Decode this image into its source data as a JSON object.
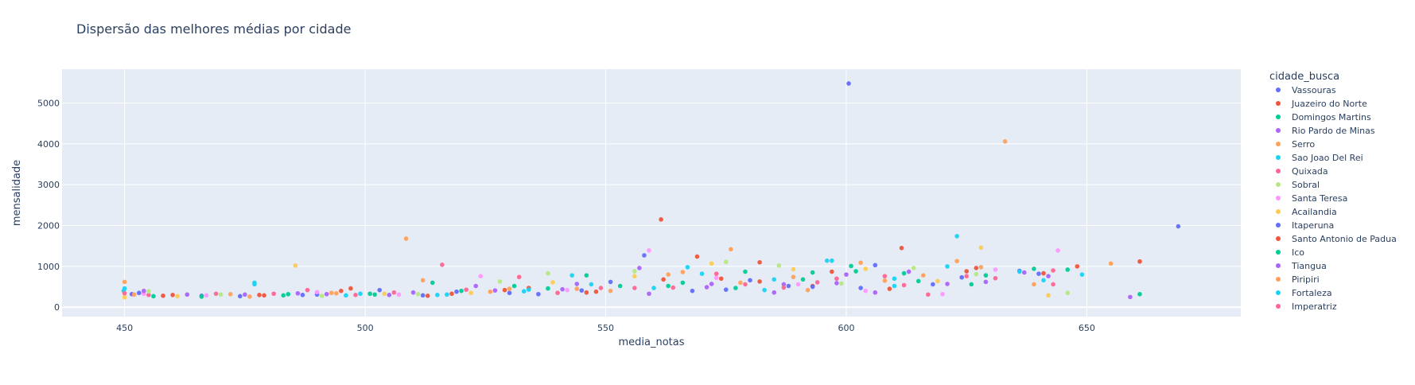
{
  "chart_data": {
    "type": "scatter",
    "title": "Dispersão das melhores médias por cidade",
    "xlabel": "media_notas",
    "ylabel": "mensalidade",
    "xlim": [
      437,
      682
    ],
    "ylim": [
      -230,
      5830
    ],
    "xticks": [
      450,
      500,
      550,
      600,
      650
    ],
    "yticks": [
      0,
      1000,
      2000,
      3000,
      4000,
      5000
    ],
    "grid": true,
    "legend": {
      "title": "cidade_busca",
      "placement": "right"
    },
    "series": [
      {
        "name": "Vassouras",
        "color": "#636efa",
        "points": [
          [
            451.5,
            320
          ],
          [
            474,
            270
          ],
          [
            490,
            310
          ],
          [
            512,
            290
          ],
          [
            530,
            350
          ],
          [
            545,
            410
          ],
          [
            558,
            1270
          ],
          [
            575,
            430
          ],
          [
            588,
            520
          ],
          [
            600.5,
            5480
          ],
          [
            603,
            470
          ],
          [
            618,
            560
          ],
          [
            640,
            820
          ],
          [
            669,
            1980
          ]
        ]
      },
      {
        "name": "Juazeiro do Norte",
        "color": "#ef553b",
        "points": [
          [
            458,
            280
          ],
          [
            478,
            300
          ],
          [
            497,
            460
          ],
          [
            518,
            330
          ],
          [
            534,
            470
          ],
          [
            548,
            380
          ],
          [
            561.5,
            2150
          ],
          [
            569,
            1240
          ],
          [
            582,
            630
          ],
          [
            593,
            520
          ],
          [
            611.5,
            1450
          ],
          [
            625,
            880
          ],
          [
            648,
            1000
          ],
          [
            661,
            1120
          ]
        ]
      },
      {
        "name": "Domingos Martins",
        "color": "#00cc96",
        "points": [
          [
            456,
            270
          ],
          [
            483,
            290
          ],
          [
            502,
            310
          ],
          [
            520,
            400
          ],
          [
            538,
            460
          ],
          [
            553,
            520
          ],
          [
            566,
            600
          ],
          [
            579,
            870
          ],
          [
            591,
            680
          ],
          [
            602,
            880
          ],
          [
            615,
            640
          ],
          [
            629,
            780
          ],
          [
            646,
            920
          ],
          [
            661,
            320
          ]
        ]
      },
      {
        "name": "Rio Pardo de Minas",
        "color": "#ab63fa",
        "points": [
          [
            463,
            310
          ],
          [
            486,
            340
          ],
          [
            505,
            300
          ],
          [
            523,
            520
          ],
          [
            541,
            440
          ],
          [
            559,
            330
          ],
          [
            572,
            570
          ],
          [
            585,
            360
          ],
          [
            598,
            590
          ],
          [
            606,
            360
          ],
          [
            621,
            570
          ],
          [
            637,
            850
          ],
          [
            659,
            250
          ]
        ]
      },
      {
        "name": "Serro",
        "color": "#ffa15a",
        "points": [
          [
            450,
            620
          ],
          [
            472,
            320
          ],
          [
            493,
            350
          ],
          [
            508.5,
            1680
          ],
          [
            526,
            380
          ],
          [
            544,
            450
          ],
          [
            563,
            800
          ],
          [
            576,
            1420
          ],
          [
            589,
            740
          ],
          [
            608,
            650
          ],
          [
            623,
            1130
          ],
          [
            633,
            4060
          ],
          [
            655,
            1070
          ]
        ]
      },
      {
        "name": "Sao Joao Del Rei",
        "color": "#19d3f3",
        "points": [
          [
            450,
            460
          ],
          [
            477,
            600
          ],
          [
            499,
            330
          ],
          [
            515,
            300
          ],
          [
            533,
            390
          ],
          [
            547,
            560
          ],
          [
            567,
            980
          ],
          [
            583,
            420
          ],
          [
            596,
            1140
          ],
          [
            610,
            520
          ],
          [
            623,
            1740
          ],
          [
            641,
            660
          ],
          [
            649,
            800
          ]
        ]
      },
      {
        "name": "Quixada",
        "color": "#ff6692",
        "points": [
          [
            455,
            300
          ],
          [
            481,
            330
          ],
          [
            498,
            300
          ],
          [
            516,
            1040
          ],
          [
            532,
            740
          ],
          [
            549,
            470
          ],
          [
            564,
            480
          ],
          [
            579,
            560
          ],
          [
            594,
            610
          ],
          [
            608,
            760
          ],
          [
            617,
            310
          ],
          [
            631,
            710
          ],
          [
            643,
            900
          ]
        ]
      },
      {
        "name": "Sobral",
        "color": "#b6e880",
        "points": [
          [
            455,
            390
          ],
          [
            470,
            310
          ],
          [
            491,
            280
          ],
          [
            511,
            320
          ],
          [
            528,
            630
          ],
          [
            538,
            830
          ],
          [
            556,
            880
          ],
          [
            575,
            1110
          ],
          [
            586,
            1020
          ],
          [
            599,
            580
          ],
          [
            614,
            960
          ],
          [
            627,
            810
          ],
          [
            646,
            350
          ]
        ]
      },
      {
        "name": "Santa Teresa",
        "color": "#ff97ff",
        "points": [
          [
            454,
            330
          ],
          [
            467,
            290
          ],
          [
            490,
            370
          ],
          [
            507,
            310
          ],
          [
            524,
            760
          ],
          [
            542,
            420
          ],
          [
            559,
            1390
          ],
          [
            573,
            720
          ],
          [
            590,
            560
          ],
          [
            604,
            400
          ],
          [
            620,
            320
          ],
          [
            631,
            920
          ],
          [
            644,
            1390
          ]
        ]
      },
      {
        "name": "Acailandia",
        "color": "#fecb52",
        "points": [
          [
            450,
            240
          ],
          [
            461,
            270
          ],
          [
            485.5,
            1020
          ],
          [
            504,
            330
          ],
          [
            522,
            350
          ],
          [
            539,
            610
          ],
          [
            556,
            760
          ],
          [
            572,
            1070
          ],
          [
            589,
            930
          ],
          [
            604,
            940
          ],
          [
            619,
            640
          ],
          [
            628,
            1460
          ],
          [
            642,
            290
          ]
        ]
      },
      {
        "name": "Itaperuna",
        "color": "#636efa",
        "points": [
          [
            453,
            350
          ],
          [
            466,
            280
          ],
          [
            487,
            300
          ],
          [
            503,
            420
          ],
          [
            519,
            380
          ],
          [
            536,
            320
          ],
          [
            551,
            620
          ],
          [
            568,
            400
          ],
          [
            580,
            660
          ],
          [
            593,
            500
          ],
          [
            606,
            1030
          ],
          [
            624,
            730
          ],
          [
            636,
            890
          ]
        ]
      },
      {
        "name": "Santo Antonio de Padua",
        "color": "#ef553b",
        "points": [
          [
            460,
            300
          ],
          [
            479,
            290
          ],
          [
            495,
            400
          ],
          [
            513,
            280
          ],
          [
            529,
            420
          ],
          [
            546,
            360
          ],
          [
            562,
            680
          ],
          [
            574,
            700
          ],
          [
            582,
            1100
          ],
          [
            597,
            870
          ],
          [
            609,
            450
          ],
          [
            627,
            960
          ],
          [
            641,
            830
          ]
        ]
      },
      {
        "name": "Ico",
        "color": "#00cc96",
        "points": [
          [
            466,
            260
          ],
          [
            484,
            320
          ],
          [
            501,
            330
          ],
          [
            514,
            600
          ],
          [
            531,
            520
          ],
          [
            546,
            780
          ],
          [
            563,
            520
          ],
          [
            577,
            470
          ],
          [
            593,
            850
          ],
          [
            601,
            1010
          ],
          [
            612,
            830
          ],
          [
            626,
            560
          ],
          [
            639,
            940
          ]
        ]
      },
      {
        "name": "Tiangua",
        "color": "#ab63fa",
        "points": [
          [
            454,
            400
          ],
          [
            475,
            310
          ],
          [
            492,
            320
          ],
          [
            510,
            360
          ],
          [
            527,
            410
          ],
          [
            544,
            570
          ],
          [
            557,
            960
          ],
          [
            571,
            490
          ],
          [
            587,
            560
          ],
          [
            600,
            800
          ],
          [
            613,
            870
          ],
          [
            629,
            620
          ],
          [
            642,
            760
          ]
        ]
      },
      {
        "name": "Piripiri",
        "color": "#ffa15a",
        "points": [
          [
            452,
            310
          ],
          [
            476,
            260
          ],
          [
            494,
            340
          ],
          [
            512,
            660
          ],
          [
            530,
            450
          ],
          [
            551,
            400
          ],
          [
            566,
            860
          ],
          [
            578,
            600
          ],
          [
            592,
            420
          ],
          [
            603,
            1090
          ],
          [
            616,
            780
          ],
          [
            628,
            980
          ],
          [
            639,
            560
          ]
        ]
      },
      {
        "name": "Fortaleza",
        "color": "#19d3f3",
        "points": [
          [
            449.8,
            400
          ],
          [
            477,
            560
          ],
          [
            496,
            290
          ],
          [
            517,
            310
          ],
          [
            534,
            430
          ],
          [
            543,
            780
          ],
          [
            560,
            470
          ],
          [
            570,
            820
          ],
          [
            585,
            680
          ],
          [
            597,
            1140
          ],
          [
            610,
            700
          ],
          [
            621,
            1000
          ],
          [
            636,
            870
          ]
        ]
      },
      {
        "name": "Imperatriz",
        "color": "#ff6692",
        "points": [
          [
            450,
            340
          ],
          [
            469,
            330
          ],
          [
            488,
            420
          ],
          [
            506,
            360
          ],
          [
            521,
            430
          ],
          [
            540,
            350
          ],
          [
            556,
            470
          ],
          [
            573,
            820
          ],
          [
            587,
            480
          ],
          [
            598,
            700
          ],
          [
            612,
            540
          ],
          [
            625,
            760
          ],
          [
            643,
            560
          ]
        ]
      }
    ]
  }
}
